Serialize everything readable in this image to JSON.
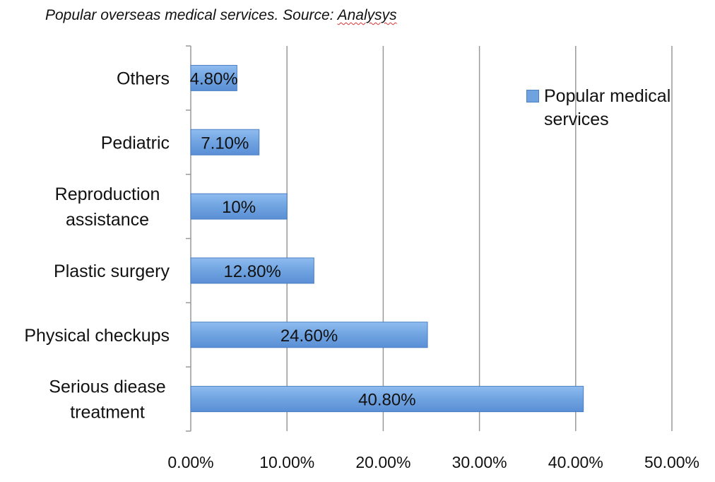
{
  "chart_data": {
    "type": "bar",
    "orientation": "horizontal",
    "title": "Popular overseas medical services. Source: ",
    "title_source": "Analysys",
    "categories": [
      "Serious diease treatment",
      "Physical checkups",
      "Plastic surgery",
      "Reproduction assistance",
      "Pediatric",
      "Others"
    ],
    "category_lines": [
      [
        "Serious diease",
        "treatment"
      ],
      [
        "Physical checkups"
      ],
      [
        "Plastic surgery"
      ],
      [
        "Reproduction",
        "assistance"
      ],
      [
        "Pediatric"
      ],
      [
        "Others"
      ]
    ],
    "series": [
      {
        "name": "Popular medical services",
        "values": [
          40.8,
          24.6,
          12.8,
          10,
          7.1,
          4.8
        ],
        "data_labels": [
          "40.80%",
          "24.60%",
          "12.80%",
          "10%",
          "7.10%",
          "4.80%"
        ]
      }
    ],
    "xlim": [
      0,
      50
    ],
    "xticks": [
      "0.00%",
      "10.00%",
      "20.00%",
      "30.00%",
      "40.00%",
      "50.00%"
    ],
    "grid": "vertical",
    "legend_position": "top-right",
    "colors": {
      "bar": "#6fa3e0",
      "bar_edge": "#4a7fc4",
      "grid": "#999999"
    }
  }
}
